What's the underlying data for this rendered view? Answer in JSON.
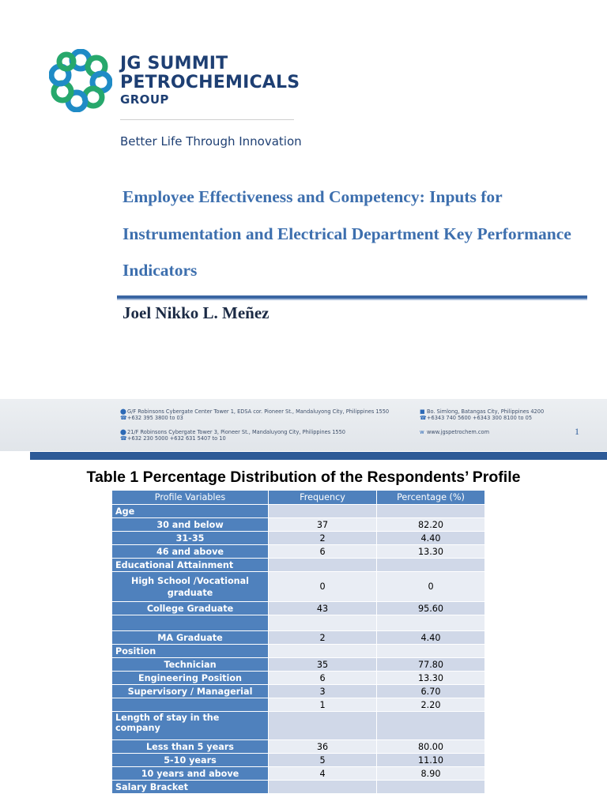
{
  "slide": {
    "logo": {
      "line1": "JG SUMMIT",
      "line2": "PETROCHEMICALS",
      "line3": "GROUP"
    },
    "tagline": "Better Life Through Innovation",
    "title": "Employee Effectiveness and Competency: Inputs for Instrumentation and Electrical Department Key Performance Indicators",
    "author": "Joel Nikko L. Meñez",
    "footer": {
      "office1": {
        "address": "G/F Robinsons Cybergate Center Tower 1, EDSA cor. Pioneer St., Mandaluyong City, Philippines 1550",
        "phone": "+632 395 3800 to 03"
      },
      "office2": {
        "address": "21/F Robinsons Cybergate Tower 3, Pioneer St., Mandaluyong City, Philippines 1550",
        "phone": "+632 230 5000     +632 631 5407 to 10"
      },
      "plant": {
        "address": "Bo. Simlong, Batangas City, Philippines 4200",
        "phone": "+6343 740 5600     +6343 300 8100 to 05"
      },
      "website": "www.jgspetrochem.com"
    },
    "page_number": "1",
    "colors": {
      "brand_blue": "#1e3f73",
      "title_blue": "#3d6fae",
      "bar_blue": "#2d5a97"
    }
  },
  "document": {
    "table_title": "Table 1 Percentage Distribution of the Respondents’ Profile",
    "table": {
      "headers": [
        "Profile Variables",
        "Frequency",
        "Percentage (%)"
      ],
      "rows": [
        [
          "Age",
          "",
          ""
        ],
        [
          "30 and below",
          "37",
          "82.20"
        ],
        [
          "31-35",
          "2",
          "4.40"
        ],
        [
          "46 and above",
          "6",
          "13.30"
        ],
        [
          "Educational Attainment",
          "",
          ""
        ],
        [
          "High School /Vocational graduate",
          "0",
          "0"
        ],
        [
          "College Graduate",
          "43",
          "95.60"
        ],
        [
          "",
          "",
          ""
        ],
        [
          "MA Graduate",
          "2",
          "4.40"
        ],
        [
          "Position",
          "",
          ""
        ],
        [
          "Technician",
          "35",
          "77.80"
        ],
        [
          "Engineering Position",
          "6",
          "13.30"
        ],
        [
          "Supervisory / Managerial",
          "3",
          "6.70"
        ],
        [
          "",
          "1",
          "2.20"
        ],
        [
          "Length of stay in the company",
          "",
          ""
        ],
        [
          "Less than 5 years",
          "36",
          "80.00"
        ],
        [
          "5-10 years",
          "5",
          "11.10"
        ],
        [
          "10 years and above",
          "4",
          "8.90"
        ],
        [
          "Salary Bracket",
          "",
          ""
        ]
      ],
      "colors": {
        "header_fill": "#4f81bd",
        "band_dark": "#d0d8e8",
        "band_light": "#e9edf4"
      }
    }
  }
}
